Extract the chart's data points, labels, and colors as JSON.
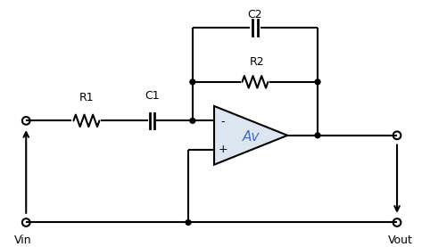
{
  "bg_color": "#ffffff",
  "line_color": "#000000",
  "opamp_fill": "#dce6f0",
  "opamp_stroke": "#000000",
  "label_color_black": "#000000",
  "label_color_blue": "#4472c4",
  "Vin_label": "Vin",
  "Vout_label": "Vout",
  "R1_label": "R1",
  "C1_label": "C1",
  "R2_label": "R2",
  "C2_label": "C2",
  "Av_label": "Av",
  "minus_label": "-",
  "plus_label": "+"
}
